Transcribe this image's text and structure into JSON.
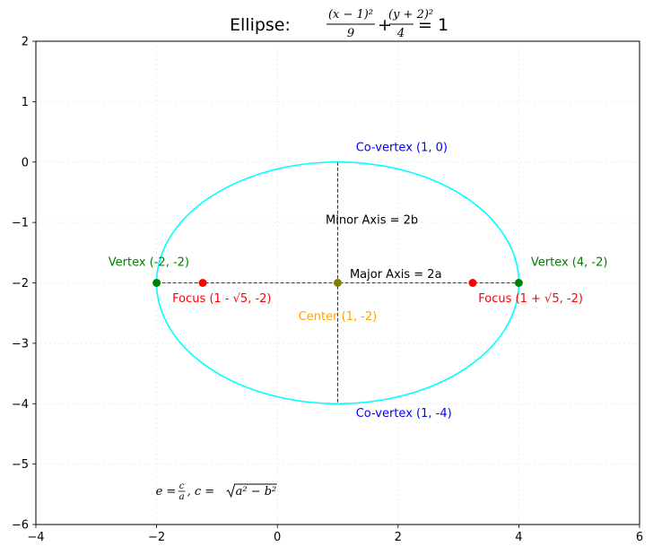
{
  "chart_data": {
    "type": "scatter",
    "title": {
      "prefix": "Ellipse: ",
      "frac1_num": "(x − 1)²",
      "frac1_den": "9",
      "plus": "+",
      "frac2_num": "(y + 2)²",
      "frac2_den": "4",
      "rhs": "= 1"
    },
    "xlim": [
      -4,
      6
    ],
    "ylim": [
      -6,
      2
    ],
    "xticks": [
      -4,
      -2,
      0,
      2,
      4,
      6
    ],
    "yticks": [
      -6,
      -5,
      -4,
      -3,
      -2,
      -1,
      0,
      1,
      2
    ],
    "grid": true,
    "ellipse": {
      "h": 1,
      "k": -2,
      "a": 3,
      "b": 2,
      "color": "#00ffff"
    },
    "points": [
      {
        "x": 1,
        "y": -2,
        "color": "#808000"
      },
      {
        "x": -2,
        "y": -2,
        "color": "#008000"
      },
      {
        "x": 4,
        "y": -2,
        "color": "#008000"
      },
      {
        "x": -1.236,
        "y": -2,
        "color": "#ff0000"
      },
      {
        "x": 3.236,
        "y": -2,
        "color": "#ff0000"
      }
    ],
    "axes_lines": [
      {
        "x1": -2,
        "y1": -2,
        "x2": 4,
        "y2": -2
      },
      {
        "x1": 1,
        "y1": 0,
        "x2": 1,
        "y2": -4
      }
    ],
    "annotations": [
      {
        "text": "Center (1, -2)",
        "x": 1,
        "y": -2.55,
        "anchor": "middle",
        "color": "#ffa500"
      },
      {
        "text": "Vertex (-2, -2)",
        "x": -2.8,
        "y": -1.65,
        "anchor": "start",
        "color": "#008000"
      },
      {
        "text": "Vertex (4, -2)",
        "x": 4.2,
        "y": -1.65,
        "anchor": "start",
        "color": "#008000"
      },
      {
        "text": "Co-vertex (1, 0)",
        "x": 1.3,
        "y": 0.25,
        "anchor": "start",
        "color": "#0000ff"
      },
      {
        "text": "Co-vertex (1, -4)",
        "x": 1.3,
        "y": -4.15,
        "anchor": "start",
        "color": "#0000ff"
      },
      {
        "text": "Focus (1 - √5, -2)",
        "x": -1.74,
        "y": -2.25,
        "anchor": "start",
        "color": "#ff0000"
      },
      {
        "text": "Focus (1 + √5, -2)",
        "x": 3.33,
        "y": -2.25,
        "anchor": "start",
        "color": "#ff0000"
      },
      {
        "text": "Major Axis = 2a",
        "x": 1.2,
        "y": -1.85,
        "anchor": "start",
        "color": "#000000"
      },
      {
        "text": "Minor Axis = 2b",
        "x": 0.8,
        "y": -0.95,
        "anchor": "start",
        "color": "#000000"
      }
    ],
    "formula": {
      "e": "e =",
      "c": "c",
      "a": "a",
      "sep": ",  c =",
      "rad": "a² − b²",
      "x": -2.0,
      "y": -5.45
    }
  }
}
